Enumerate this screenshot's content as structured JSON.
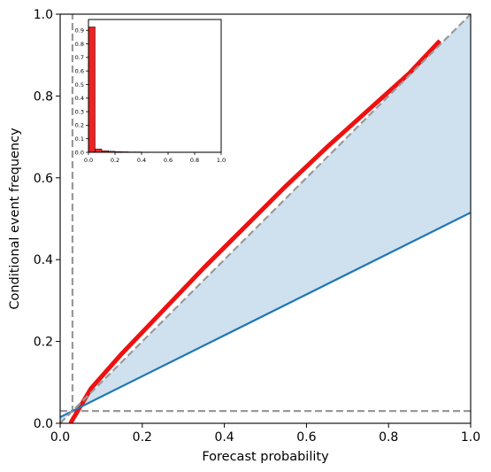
{
  "chart_data": [
    {
      "type": "line",
      "title": "",
      "xlabel": "Forecast probability",
      "ylabel": "Conditional event frequency",
      "xlim": [
        0.0,
        1.0
      ],
      "ylim": [
        0.0,
        1.0
      ],
      "xticks": [
        "0.0",
        "0.2",
        "0.4",
        "0.6",
        "0.8",
        "1.0"
      ],
      "yticks": [
        "0.0",
        "0.2",
        "0.4",
        "0.6",
        "0.8",
        "1.0"
      ],
      "grid": false,
      "climatology": 0.03,
      "skill_region_color": "#cfe0ee",
      "series": [
        {
          "role": "reliability",
          "color": "#ee1111",
          "x": [
            0.025,
            0.075,
            0.15,
            0.25,
            0.35,
            0.45,
            0.55,
            0.65,
            0.75,
            0.85,
            0.925
          ],
          "y": [
            0.0,
            0.085,
            0.17,
            0.275,
            0.38,
            0.48,
            0.58,
            0.675,
            0.765,
            0.855,
            0.935
          ]
        },
        {
          "role": "no-skill",
          "color": "#1f77b4",
          "x": [
            0.0,
            1.0
          ],
          "y": [
            0.015,
            0.515
          ]
        },
        {
          "role": "perfect-reliability",
          "color": "#999999",
          "style": "dashed",
          "x": [
            0.0,
            1.0
          ],
          "y": [
            0.0,
            1.0
          ]
        }
      ]
    },
    {
      "type": "bar",
      "role": "inset-histogram",
      "color": "#ee2222",
      "xlim": [
        0.0,
        1.0
      ],
      "ylim": [
        0.0,
        0.98
      ],
      "xticks": [
        "0.0",
        "0.2",
        "0.4",
        "0.6",
        "0.8",
        "1.0"
      ],
      "yticks": [
        "0.0",
        "0.1",
        "0.2",
        "0.3",
        "0.4",
        "0.5",
        "0.6",
        "0.7",
        "0.8",
        "0.9"
      ],
      "bin_edges": [
        0.0,
        0.05,
        0.1,
        0.15,
        0.2,
        0.25,
        0.3,
        0.35,
        0.4,
        0.45,
        0.5,
        0.55,
        0.6,
        0.65,
        0.7,
        0.75,
        0.8,
        0.85,
        0.9,
        0.95,
        1.0
      ],
      "values": [
        0.925,
        0.025,
        0.012,
        0.008,
        0.005,
        0.004,
        0.003,
        0.003,
        0.002,
        0.002,
        0.002,
        0.002,
        0.002,
        0.002,
        0.002,
        0.002,
        0.002,
        0.002,
        0.002,
        0.002
      ]
    }
  ]
}
